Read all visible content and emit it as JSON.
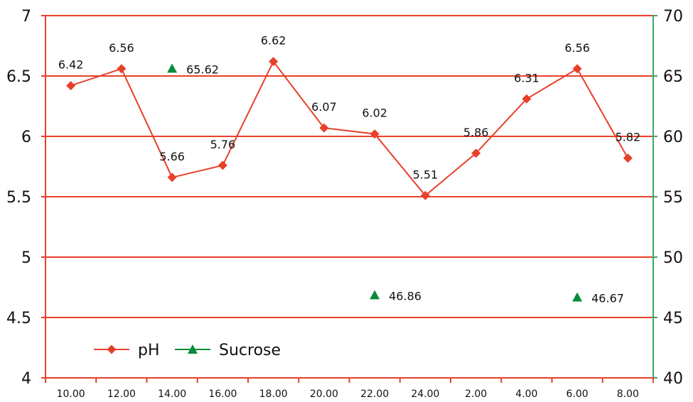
{
  "chart_data": {
    "type": "line",
    "categories": [
      "10.00",
      "12.00",
      "14.00",
      "16.00",
      "18.00",
      "20.00",
      "22.00",
      "24.00",
      "2.00",
      "4.00",
      "6.00",
      "8.00"
    ],
    "series": [
      {
        "name": "pH",
        "axis": "left",
        "color": "#e8402a",
        "marker": "diamond",
        "values": [
          6.42,
          6.56,
          5.66,
          5.76,
          6.62,
          6.07,
          6.02,
          5.51,
          5.86,
          6.31,
          6.56,
          5.82
        ],
        "labels": [
          "6.42",
          "6.56",
          "5.66",
          "5.76",
          "6.62",
          "6.07",
          "6.02",
          "5.51",
          "5.86",
          "6.31",
          "6.56",
          "5.82"
        ]
      },
      {
        "name": "Sucrose",
        "axis": "right",
        "color": "#0a8a3c",
        "marker": "triangle",
        "values": [
          null,
          null,
          65.62,
          null,
          null,
          null,
          46.86,
          null,
          null,
          null,
          46.67,
          null
        ],
        "labels": [
          null,
          null,
          "65.62",
          null,
          null,
          null,
          "46.86",
          null,
          null,
          null,
          "46.67",
          null
        ]
      }
    ],
    "y_left": {
      "min": 4,
      "max": 7,
      "ticks": [
        4,
        4.5,
        5,
        5.5,
        6,
        6.5,
        7
      ],
      "tick_labels": [
        "4",
        "4.5",
        "5",
        "5.5",
        "6",
        "6.5",
        "7"
      ]
    },
    "y_right": {
      "min": 40,
      "max": 70,
      "ticks": [
        40,
        45,
        50,
        55,
        60,
        65,
        70
      ],
      "tick_labels": [
        "40",
        "45",
        "50",
        "55",
        "60",
        "65",
        "70"
      ]
    },
    "grid": true,
    "grid_color": "#e8402a",
    "left_axis_color": "#e8402a",
    "right_axis_color": "#3aa86b",
    "legend_placement": "bottom-left",
    "title": "",
    "xlabel": "",
    "ylabel": ""
  }
}
